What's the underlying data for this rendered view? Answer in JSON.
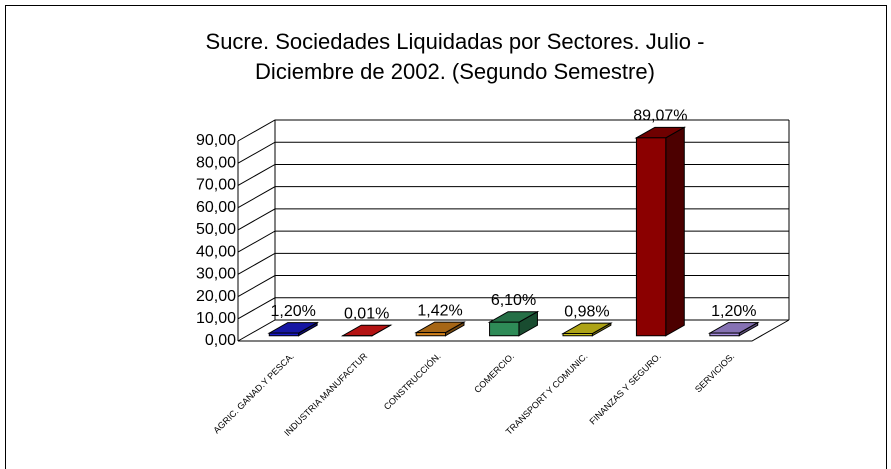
{
  "chart_data": {
    "type": "bar3d",
    "title": [
      "Sucre. Sociedades Liquidadas por Sectores. Julio -",
      "Diciembre de 2002. (Segundo Semestre)"
    ],
    "categories": [
      "AGRIC. GANAD.Y PESCA.",
      "INDUSTRIA MANUFACTUR",
      "CONSTRUCCIÓN.",
      "COMERCIO.",
      "TRANSPORT Y COMUNIC.",
      "FINANZAS Y SEGURO.",
      "SERVICIOS."
    ],
    "values": [
      1.2,
      0.01,
      1.42,
      6.1,
      0.98,
      89.07,
      1.2
    ],
    "value_labels": [
      "1,20%",
      "0,01%",
      "1,42%",
      "6,10%",
      "0,98%",
      "89,07%",
      "1,20%"
    ],
    "colors": [
      "#1c1ccc",
      "#e01818",
      "#d0801c",
      "#2e8b57",
      "#d8cc1c",
      "#8b0000",
      "#a88ee0"
    ],
    "ylim": [
      0,
      90
    ],
    "yticks": [
      {
        "value": 0,
        "label": "0,00"
      },
      {
        "value": 10,
        "label": "10,00"
      },
      {
        "value": 20,
        "label": "20,00"
      },
      {
        "value": 30,
        "label": "30,00"
      },
      {
        "value": 40,
        "label": "40,00"
      },
      {
        "value": 50,
        "label": "50,00"
      },
      {
        "value": 60,
        "label": "60,00"
      },
      {
        "value": 70,
        "label": "70,00"
      },
      {
        "value": 80,
        "label": "80,00"
      },
      {
        "value": 90,
        "label": "90,00"
      }
    ],
    "grid": true
  }
}
